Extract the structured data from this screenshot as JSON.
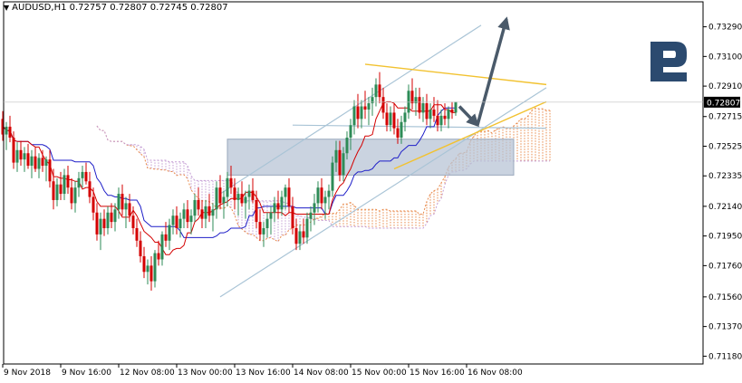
{
  "header": {
    "symbol": "AUDUSD,H1",
    "open": "0.72757",
    "high": "0.72807",
    "low": "0.72745",
    "close": "0.72807"
  },
  "colors": {
    "bull_candle": "#2e8b57",
    "bear_candle": "#d40000",
    "tenkan": "#d40000",
    "kijun": "#1e1ec8",
    "cloud": "#e8894a",
    "cloud_alt": "#c39bd3",
    "channel": "#a9c4d6",
    "triangle": "#f2c230",
    "zone_fill": "#b8c4d6",
    "arrow": "#4a5a6a",
    "logo": "#2b4a6f",
    "price_label_bg": "#000000"
  },
  "chart_data": {
    "type": "candlestick",
    "symbol": "AUDUSD",
    "timeframe": "H1",
    "current_price": 0.72807,
    "y_ticks": [
      "0.73290",
      "0.73100",
      "0.72910",
      "0.72715",
      "0.72525",
      "0.72335",
      "0.72140",
      "0.71950",
      "0.71760",
      "0.71560",
      "0.71370",
      "0.71180"
    ],
    "y_range": [
      0.7113,
      0.7345
    ],
    "x_ticks": [
      "9 Nov 2018",
      "9 Nov 16:00",
      "12 Nov 08:00",
      "13 Nov 00:00",
      "13 Nov 16:00",
      "14 Nov 08:00",
      "15 Nov 00:00",
      "15 Nov 16:00",
      "16 Nov 08:00"
    ],
    "x_tick_bars": [
      0,
      16,
      32,
      48,
      64,
      80,
      96,
      112,
      128
    ],
    "candles": [
      [
        0.727,
        0.7275,
        0.7256,
        0.726
      ],
      [
        0.726,
        0.7268,
        0.725,
        0.7265
      ],
      [
        0.7265,
        0.7272,
        0.7255,
        0.7258
      ],
      [
        0.7258,
        0.7262,
        0.7238,
        0.7242
      ],
      [
        0.7242,
        0.7255,
        0.7236,
        0.725
      ],
      [
        0.725,
        0.7256,
        0.724,
        0.7244
      ],
      [
        0.7244,
        0.7252,
        0.7236,
        0.7248
      ],
      [
        0.7248,
        0.7254,
        0.7238,
        0.724
      ],
      [
        0.724,
        0.725,
        0.7232,
        0.7246
      ],
      [
        0.7246,
        0.7252,
        0.7236,
        0.7238
      ],
      [
        0.7238,
        0.7248,
        0.7232,
        0.7245
      ],
      [
        0.7245,
        0.725,
        0.7236,
        0.724
      ],
      [
        0.724,
        0.7246,
        0.723,
        0.7244
      ],
      [
        0.7244,
        0.725,
        0.7226,
        0.723
      ],
      [
        0.723,
        0.7238,
        0.7212,
        0.7218
      ],
      [
        0.7218,
        0.7232,
        0.7214,
        0.7228
      ],
      [
        0.7228,
        0.7236,
        0.7218,
        0.7222
      ],
      [
        0.7222,
        0.7238,
        0.7218,
        0.7234
      ],
      [
        0.7234,
        0.724,
        0.7222,
        0.7226
      ],
      [
        0.7226,
        0.7232,
        0.7212,
        0.7216
      ],
      [
        0.7216,
        0.723,
        0.721,
        0.7226
      ],
      [
        0.7226,
        0.7236,
        0.722,
        0.7232
      ],
      [
        0.7232,
        0.724,
        0.7226,
        0.7236
      ],
      [
        0.7236,
        0.7242,
        0.7228,
        0.723
      ],
      [
        0.723,
        0.7236,
        0.7216,
        0.722
      ],
      [
        0.722,
        0.7226,
        0.7205,
        0.721
      ],
      [
        0.721,
        0.7216,
        0.7192,
        0.7196
      ],
      [
        0.7196,
        0.721,
        0.7186,
        0.7206
      ],
      [
        0.7206,
        0.7212,
        0.7195,
        0.72
      ],
      [
        0.72,
        0.7214,
        0.7196,
        0.721
      ],
      [
        0.721,
        0.7216,
        0.72,
        0.7204
      ],
      [
        0.7204,
        0.7216,
        0.7198,
        0.7212
      ],
      [
        0.7212,
        0.7226,
        0.7206,
        0.7222
      ],
      [
        0.7222,
        0.7228,
        0.7208,
        0.7212
      ],
      [
        0.7212,
        0.722,
        0.72,
        0.7216
      ],
      [
        0.7216,
        0.7222,
        0.7204,
        0.7208
      ],
      [
        0.7208,
        0.7214,
        0.7196,
        0.72
      ],
      [
        0.72,
        0.7206,
        0.7188,
        0.7192
      ],
      [
        0.7192,
        0.7198,
        0.7178,
        0.7182
      ],
      [
        0.7182,
        0.7188,
        0.7168,
        0.7172
      ],
      [
        0.7172,
        0.718,
        0.7164,
        0.7176
      ],
      [
        0.7176,
        0.7182,
        0.716,
        0.7166
      ],
      [
        0.7166,
        0.7186,
        0.7162,
        0.7184
      ],
      [
        0.7184,
        0.7192,
        0.7176,
        0.718
      ],
      [
        0.718,
        0.7198,
        0.7176,
        0.7196
      ],
      [
        0.7196,
        0.7204,
        0.7188,
        0.7192
      ],
      [
        0.7192,
        0.7206,
        0.7186,
        0.7202
      ],
      [
        0.7202,
        0.7212,
        0.7196,
        0.7208
      ],
      [
        0.7208,
        0.7214,
        0.7196,
        0.72
      ],
      [
        0.72,
        0.721,
        0.7194,
        0.7206
      ],
      [
        0.7206,
        0.7216,
        0.72,
        0.7212
      ],
      [
        0.7212,
        0.7218,
        0.72,
        0.7204
      ],
      [
        0.7204,
        0.7212,
        0.7196,
        0.7208
      ],
      [
        0.7208,
        0.7222,
        0.7204,
        0.7218
      ],
      [
        0.7218,
        0.7226,
        0.7208,
        0.7212
      ],
      [
        0.7212,
        0.7218,
        0.72,
        0.7206
      ],
      [
        0.7206,
        0.7218,
        0.72,
        0.7214
      ],
      [
        0.7214,
        0.7222,
        0.7204,
        0.7208
      ],
      [
        0.7208,
        0.7216,
        0.7198,
        0.7212
      ],
      [
        0.7212,
        0.723,
        0.7206,
        0.7226
      ],
      [
        0.7226,
        0.7234,
        0.7212,
        0.7216
      ],
      [
        0.7216,
        0.7224,
        0.7206,
        0.722
      ],
      [
        0.722,
        0.7236,
        0.7214,
        0.7232
      ],
      [
        0.7232,
        0.724,
        0.7222,
        0.7226
      ],
      [
        0.7226,
        0.7232,
        0.7212,
        0.7218
      ],
      [
        0.7218,
        0.7226,
        0.7208,
        0.7222
      ],
      [
        0.7222,
        0.723,
        0.7214,
        0.7216
      ],
      [
        0.7216,
        0.7224,
        0.7206,
        0.722
      ],
      [
        0.722,
        0.7228,
        0.7212,
        0.7224
      ],
      [
        0.7224,
        0.7232,
        0.7216,
        0.7218
      ],
      [
        0.7218,
        0.7224,
        0.72,
        0.7204
      ],
      [
        0.7204,
        0.7212,
        0.7192,
        0.7196
      ],
      [
        0.7196,
        0.7204,
        0.7188,
        0.72
      ],
      [
        0.72,
        0.721,
        0.7194,
        0.7206
      ],
      [
        0.7206,
        0.7214,
        0.7196,
        0.721
      ],
      [
        0.721,
        0.722,
        0.7204,
        0.7216
      ],
      [
        0.7216,
        0.7224,
        0.7206,
        0.7212
      ],
      [
        0.7212,
        0.7224,
        0.7208,
        0.722
      ],
      [
        0.722,
        0.7228,
        0.7212,
        0.7226
      ],
      [
        0.7226,
        0.7232,
        0.721,
        0.7214
      ],
      [
        0.7214,
        0.722,
        0.7196,
        0.72
      ],
      [
        0.72,
        0.7206,
        0.7186,
        0.719
      ],
      [
        0.719,
        0.7202,
        0.7186,
        0.7198
      ],
      [
        0.7198,
        0.7206,
        0.719,
        0.7194
      ],
      [
        0.7194,
        0.721,
        0.719,
        0.7206
      ],
      [
        0.7206,
        0.7214,
        0.7198,
        0.721
      ],
      [
        0.721,
        0.7222,
        0.7202,
        0.7216
      ],
      [
        0.7216,
        0.723,
        0.721,
        0.7226
      ],
      [
        0.7226,
        0.7232,
        0.7212,
        0.7216
      ],
      [
        0.7216,
        0.7224,
        0.7206,
        0.722
      ],
      [
        0.722,
        0.7228,
        0.7212,
        0.7224
      ],
      [
        0.7224,
        0.7246,
        0.722,
        0.7242
      ],
      [
        0.7242,
        0.7256,
        0.7236,
        0.725
      ],
      [
        0.725,
        0.7256,
        0.723,
        0.7234
      ],
      [
        0.7234,
        0.7252,
        0.723,
        0.7248
      ],
      [
        0.7248,
        0.7262,
        0.7244,
        0.7258
      ],
      [
        0.7258,
        0.727,
        0.725,
        0.7266
      ],
      [
        0.7266,
        0.7282,
        0.726,
        0.7278
      ],
      [
        0.7278,
        0.7286,
        0.7264,
        0.727
      ],
      [
        0.727,
        0.7282,
        0.7264,
        0.7278
      ],
      [
        0.7278,
        0.7288,
        0.727,
        0.7276
      ],
      [
        0.7276,
        0.7284,
        0.7266,
        0.728
      ],
      [
        0.728,
        0.729,
        0.7272,
        0.7284
      ],
      [
        0.7284,
        0.7296,
        0.7278,
        0.7292
      ],
      [
        0.7292,
        0.73,
        0.728,
        0.7284
      ],
      [
        0.7284,
        0.729,
        0.727,
        0.7274
      ],
      [
        0.7274,
        0.728,
        0.7262,
        0.7266
      ],
      [
        0.7266,
        0.7278,
        0.7262,
        0.7274
      ],
      [
        0.7274,
        0.728,
        0.726,
        0.7264
      ],
      [
        0.7264,
        0.727,
        0.7254,
        0.7258
      ],
      [
        0.7258,
        0.7272,
        0.7254,
        0.7268
      ],
      [
        0.7268,
        0.7278,
        0.7262,
        0.7274
      ],
      [
        0.7274,
        0.7292,
        0.727,
        0.7288
      ],
      [
        0.7288,
        0.7296,
        0.7276,
        0.728
      ],
      [
        0.728,
        0.729,
        0.7272,
        0.7284
      ],
      [
        0.7284,
        0.729,
        0.727,
        0.7274
      ],
      [
        0.7274,
        0.7284,
        0.7268,
        0.728
      ],
      [
        0.728,
        0.7286,
        0.7266,
        0.727
      ],
      [
        0.727,
        0.728,
        0.7264,
        0.7276
      ],
      [
        0.7276,
        0.7284,
        0.7268,
        0.7272
      ],
      [
        0.7272,
        0.7282,
        0.7262,
        0.7266
      ],
      [
        0.7266,
        0.7276,
        0.7262,
        0.7272
      ],
      [
        0.7272,
        0.728,
        0.7266,
        0.727
      ],
      [
        0.727,
        0.7278,
        0.7264,
        0.7276
      ],
      [
        0.7276,
        0.7281,
        0.727,
        0.7274
      ],
      [
        0.7274,
        0.728,
        0.7272,
        0.7281
      ]
    ],
    "annotations": {
      "channel_lines": [
        [
          [
            60,
            0.7222
          ],
          [
            132,
            0.733
          ]
        ],
        [
          [
            60,
            0.7156
          ],
          [
            150,
            0.729
          ]
        ],
        [
          [
            80,
            0.7266
          ],
          [
            150,
            0.7264
          ]
        ]
      ],
      "triangle_lines": [
        [
          [
            100,
            0.7305
          ],
          [
            150,
            0.7292
          ]
        ],
        [
          [
            108,
            0.7238
          ],
          [
            150,
            0.7281
          ]
        ]
      ],
      "zone": {
        "bar_start": 62,
        "bar_end": 141,
        "price_top": 0.7257,
        "price_bottom": 0.7234
      },
      "arrows": [
        [
          [
            126,
            0.7278
          ],
          [
            131,
            0.7266
          ]
        ],
        [
          [
            131,
            0.7266
          ],
          [
            139,
            0.7334
          ]
        ]
      ]
    }
  }
}
